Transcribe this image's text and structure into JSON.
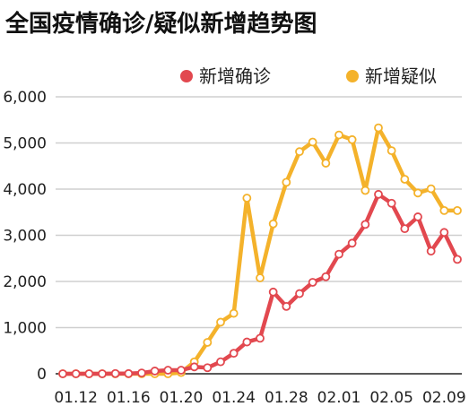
{
  "page": {
    "title": "全国疫情确诊/疑似新增趋势图"
  },
  "chart_data": {
    "type": "line",
    "title": "全国疫情确诊/疑似新增趋势图",
    "xlabel": "",
    "ylabel": "",
    "ylim": [
      0,
      6000
    ],
    "yticks": [
      0,
      1000,
      2000,
      3000,
      4000,
      5000,
      6000
    ],
    "ytick_labels": [
      "0",
      "1,000",
      "2,000",
      "3,000",
      "4,000",
      "5,000",
      "6,000"
    ],
    "x_tick_labels": [
      "01.12",
      "01.16",
      "01.20",
      "01.24",
      "01.28",
      "02.01",
      "02.05",
      "02.09"
    ],
    "categories": [
      "01.11",
      "01.12",
      "01.13",
      "01.14",
      "01.15",
      "01.16",
      "01.17",
      "01.18",
      "01.19",
      "01.20",
      "01.21",
      "01.22",
      "01.23",
      "01.24",
      "01.25",
      "01.26",
      "01.27",
      "01.28",
      "01.29",
      "01.30",
      "01.31",
      "02.01",
      "02.02",
      "02.03",
      "02.04",
      "02.05",
      "02.06",
      "02.07",
      "02.08",
      "02.09",
      "02.10"
    ],
    "legend_position": "top-right",
    "grid": true,
    "series": [
      {
        "name": "新增确诊",
        "color": "#e2484f",
        "values": [
          0,
          0,
          0,
          0,
          5,
          4,
          17,
          59,
          77,
          77,
          149,
          131,
          259,
          444,
          688,
          769,
          1771,
          1459,
          1737,
          1981,
          2102,
          2590,
          2829,
          3235,
          3887,
          3694,
          3143,
          3399,
          2656,
          3062,
          2478
        ]
      },
      {
        "name": "新增疑似",
        "color": "#f4b22b",
        "values": [
          0,
          0,
          0,
          0,
          0,
          0,
          0,
          0,
          0,
          27,
          257,
          680,
          1118,
          1309,
          3806,
          2077,
          3248,
          4148,
          4812,
          5019,
          4562,
          5173,
          5072,
          3971,
          5328,
          4833,
          4214,
          3916,
          4008,
          3536,
          3536
        ]
      }
    ]
  }
}
